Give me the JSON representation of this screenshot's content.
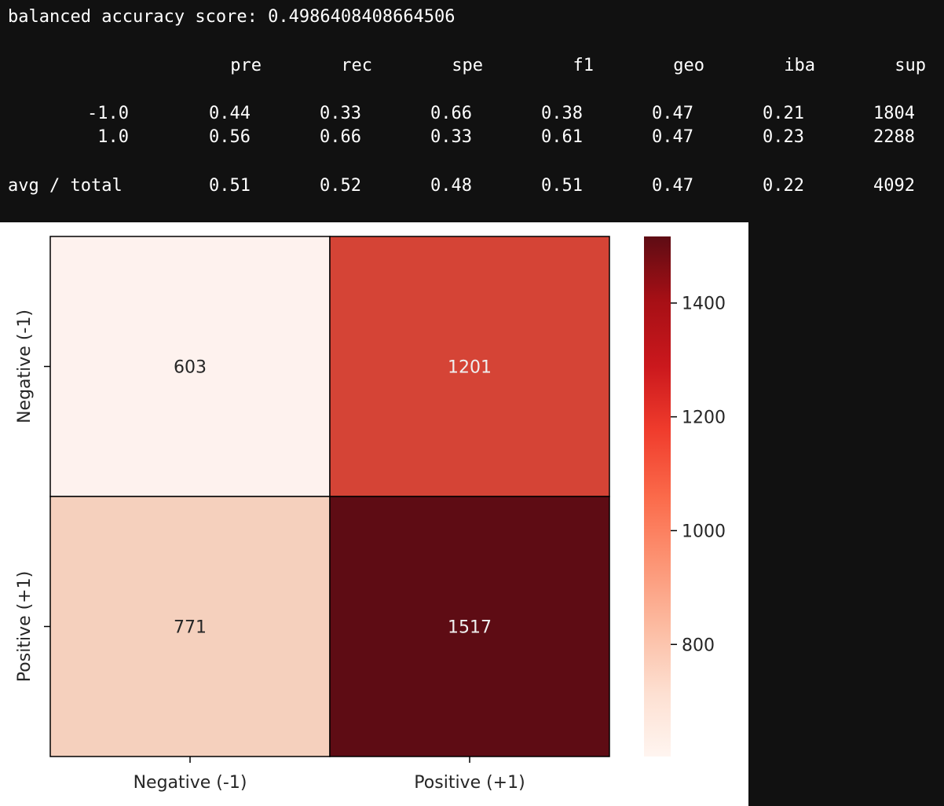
{
  "console": {
    "balanced_line": "balanced accuracy score: 0.4986408408664506",
    "headers": [
      "pre",
      "rec",
      "spe",
      "f1",
      "geo",
      "iba",
      "sup"
    ],
    "rows": [
      {
        "label": "-1.0",
        "values": [
          "0.44",
          "0.33",
          "0.66",
          "0.38",
          "0.47",
          "0.21",
          "1804"
        ]
      },
      {
        "label": "1.0",
        "values": [
          "0.56",
          "0.66",
          "0.33",
          "0.61",
          "0.47",
          "0.23",
          "2288"
        ]
      }
    ],
    "avg_row": {
      "label": "avg / total",
      "values": [
        "0.51",
        "0.52",
        "0.48",
        "0.51",
        "0.47",
        "0.22",
        "4092"
      ]
    }
  },
  "chart_data": {
    "type": "heatmap",
    "title": "",
    "x_categories": [
      "Negative (-1)",
      "Positive (+1)"
    ],
    "y_categories": [
      "Negative (-1)",
      "Positive (+1)"
    ],
    "values": [
      [
        603,
        1201
      ],
      [
        771,
        1517
      ]
    ],
    "cell_labels": [
      [
        "603",
        "1201"
      ],
      [
        "771",
        "1517"
      ]
    ],
    "colormap": "Reds",
    "colorbar": {
      "range": [
        603,
        1517
      ],
      "ticks": [
        800,
        1000,
        1200,
        1400
      ],
      "tick_labels": [
        "800",
        "1000",
        "1200",
        "1400"
      ]
    },
    "colors": {
      "low": "#fff5f0",
      "high": "#5e0c14",
      "cell_fills": [
        [
          "#fef2ee",
          "#d54436"
        ],
        [
          "#f5d0bd",
          "#5e0c14"
        ]
      ],
      "label_dark": "#262626",
      "label_light": "#f0f0f0"
    }
  }
}
